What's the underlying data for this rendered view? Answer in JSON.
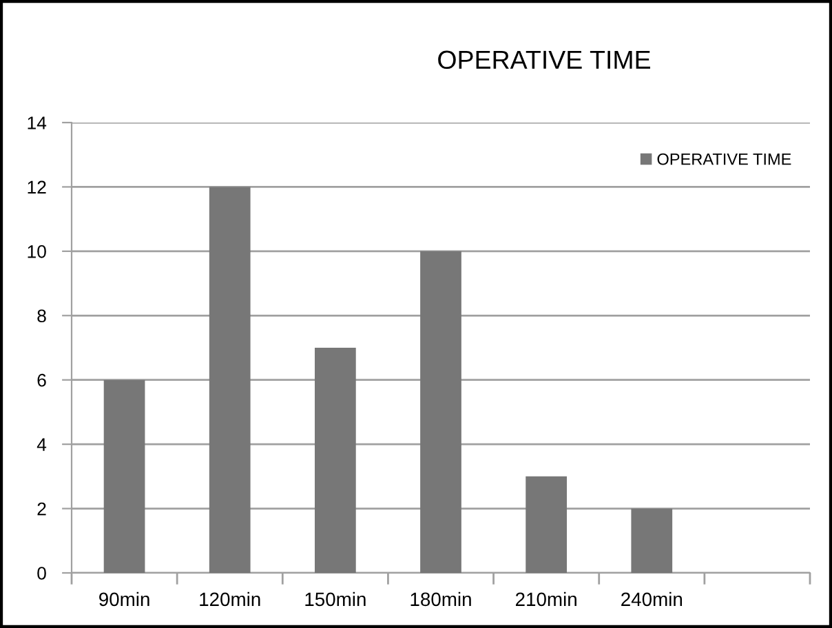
{
  "chart_data": {
    "type": "bar",
    "title": "OPERATIVE TIME",
    "categories": [
      "90min",
      "120min",
      "150min",
      "180min",
      "210min",
      "240min",
      null
    ],
    "series": [
      {
        "name": "OPERATIVE TIME",
        "color": "#777777",
        "values": [
          6,
          12,
          7,
          10,
          3,
          2,
          null
        ]
      }
    ],
    "ylim": [
      0,
      14
    ],
    "yticks": [
      0,
      2,
      4,
      6,
      8,
      10,
      12,
      14
    ],
    "grid": "y",
    "legend": "top right"
  }
}
